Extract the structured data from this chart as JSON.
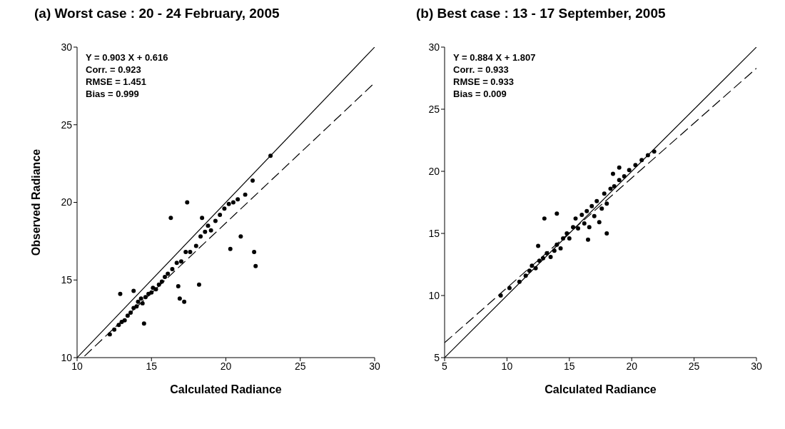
{
  "chart_data": [
    {
      "type": "scatter",
      "title": "(a) Worst case : 20 - 24 February, 2005",
      "xlabel": "Calculated Radiance",
      "ylabel": "Observed Radiance",
      "xlim": [
        10,
        30
      ],
      "xticks": [
        10,
        15,
        20,
        25,
        30
      ],
      "ylim": [
        10,
        30
      ],
      "yticks": [
        10,
        15,
        20,
        25,
        30
      ],
      "annotations": [
        "Y = 0.903 X + 0.616",
        "Corr. = 0.923",
        "RMSE = 1.451",
        "Bias = 0.999"
      ],
      "series": [
        {
          "type": "scatter",
          "marker": "circle",
          "color": "#000000",
          "x": [
            12.2,
            12.5,
            12.8,
            13.0,
            13.2,
            13.4,
            13.6,
            13.8,
            14.0,
            14.1,
            14.3,
            14.4,
            14.6,
            14.8,
            15.0,
            15.1,
            15.3,
            15.5,
            15.7,
            15.9,
            16.1,
            16.4,
            16.7,
            17.0,
            17.3,
            17.6,
            18.0,
            18.3,
            18.6,
            18.8,
            19.0,
            19.3,
            19.6,
            19.9,
            20.2,
            20.5,
            20.8,
            21.3,
            21.8,
            23.0,
            12.9,
            13.8,
            17.4,
            16.3,
            18.4,
            16.9,
            17.2,
            16.8,
            20.3,
            21.0,
            22.0,
            21.9,
            14.5,
            18.2
          ],
          "values": [
            11.5,
            11.8,
            12.1,
            12.3,
            12.4,
            12.7,
            12.9,
            13.2,
            13.3,
            13.6,
            13.8,
            13.5,
            13.9,
            14.1,
            14.2,
            14.5,
            14.4,
            14.7,
            14.9,
            15.2,
            15.4,
            15.7,
            16.1,
            16.2,
            16.8,
            16.8,
            17.2,
            17.8,
            18.1,
            18.5,
            18.2,
            18.8,
            19.2,
            19.6,
            19.9,
            20.0,
            20.2,
            20.5,
            21.4,
            23.0,
            14.1,
            14.3,
            20.0,
            19.0,
            19.0,
            13.8,
            13.6,
            14.6,
            17.0,
            17.8,
            15.9,
            16.8,
            12.2,
            14.7
          ]
        },
        {
          "type": "line",
          "color": "#000000",
          "line_style": "solid",
          "x": [
            10,
            30
          ],
          "values": [
            10,
            30
          ]
        },
        {
          "type": "line",
          "color": "#000000",
          "line_style": "dashed",
          "x": [
            10.5,
            30
          ],
          "values": [
            10.1,
            27.7
          ]
        }
      ]
    },
    {
      "type": "scatter",
      "title": "(b) Best case : 13 - 17 September, 2005",
      "xlabel": "Calculated Radiance",
      "xlim": [
        5,
        30
      ],
      "xticks": [
        5,
        10,
        15,
        20,
        25,
        30
      ],
      "ylim": [
        5,
        30
      ],
      "yticks": [
        5,
        10,
        15,
        20,
        25,
        30
      ],
      "annotations": [
        "Y = 0.884 X + 1.807",
        "Corr. = 0.933",
        "RMSE = 0.933",
        "Bias = 0.009"
      ],
      "series": [
        {
          "type": "scatter",
          "marker": "circle",
          "color": "#000000",
          "x": [
            9.5,
            10.2,
            11.0,
            11.5,
            11.8,
            12.0,
            12.3,
            12.6,
            12.9,
            13.2,
            13.5,
            13.8,
            14.0,
            14.3,
            14.5,
            14.8,
            15.0,
            15.3,
            15.5,
            15.7,
            16.0,
            16.2,
            16.4,
            16.6,
            16.8,
            17.0,
            17.2,
            17.4,
            17.6,
            17.8,
            18.0,
            18.3,
            18.6,
            19.0,
            19.4,
            19.8,
            20.3,
            20.8,
            21.3,
            21.8,
            13.0,
            14.0,
            12.5,
            18.5,
            16.5,
            18.0,
            19.0
          ],
          "values": [
            10.0,
            10.6,
            11.1,
            11.6,
            12.0,
            12.4,
            12.2,
            12.8,
            13.0,
            13.4,
            13.1,
            13.6,
            14.1,
            13.8,
            14.6,
            15.0,
            14.6,
            15.5,
            16.2,
            15.4,
            16.5,
            15.8,
            16.8,
            15.5,
            17.2,
            16.4,
            17.6,
            15.9,
            17.0,
            18.2,
            17.4,
            18.6,
            18.8,
            19.3,
            19.6,
            20.1,
            20.5,
            20.9,
            21.3,
            21.6,
            16.2,
            16.6,
            14.0,
            19.8,
            14.5,
            15.0,
            20.3
          ]
        },
        {
          "type": "line",
          "color": "#000000",
          "line_style": "solid",
          "x": [
            5,
            30
          ],
          "values": [
            5,
            30
          ]
        },
        {
          "type": "line",
          "color": "#000000",
          "line_style": "dashed",
          "x": [
            5,
            30
          ],
          "values": [
            6.2,
            28.3
          ]
        }
      ]
    }
  ]
}
